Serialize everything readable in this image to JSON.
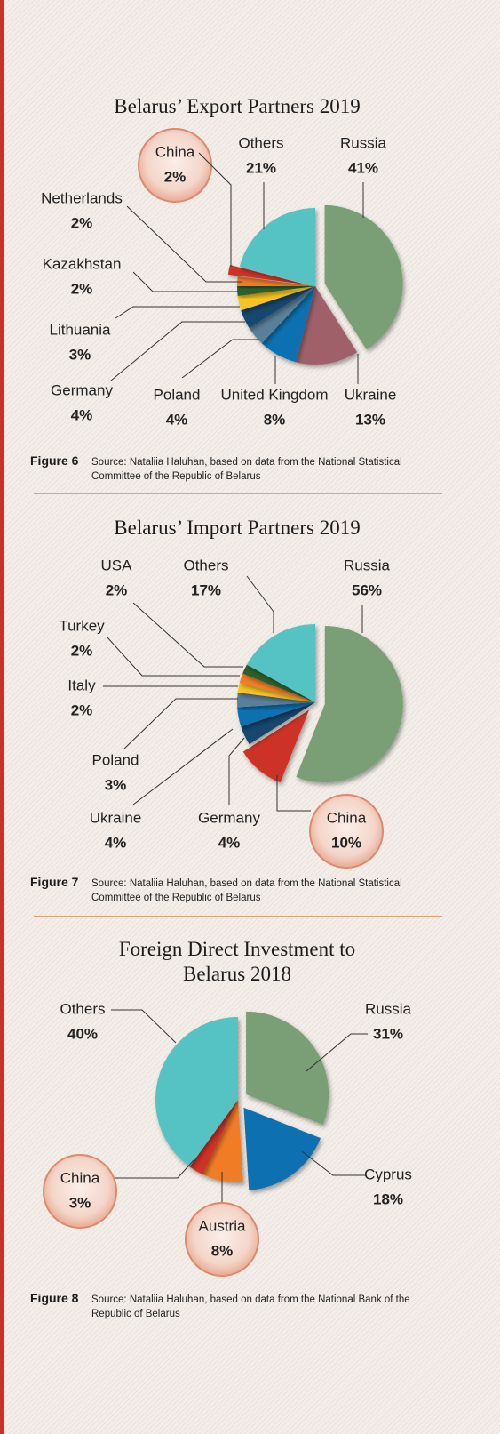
{
  "chart_data": [
    {
      "type": "pie",
      "title": "Belarus’ Export Partners 2019",
      "categories": [
        "Russia",
        "Ukraine",
        "United Kingdom",
        "Poland",
        "Germany",
        "Lithuania",
        "Kazakhstan",
        "Netherlands",
        "China",
        "Others"
      ],
      "values": [
        41,
        13,
        8,
        4,
        4,
        3,
        2,
        2,
        2,
        21
      ],
      "value_labels": [
        "41%",
        "13%",
        "8%",
        "4%",
        "4%",
        "3%",
        "2%",
        "2%",
        "2%",
        "21%"
      ],
      "colors": [
        "#7a9e74",
        "#a0606b",
        "#0e6fb0",
        "#5a7f99",
        "#12466e",
        "#f5c321",
        "#2f5f2a",
        "#f07b27",
        "#cc3127",
        "#55c2c3"
      ],
      "explode": [
        true,
        false,
        false,
        false,
        false,
        false,
        false,
        false,
        true,
        false
      ],
      "highlight": [
        false,
        false,
        false,
        false,
        false,
        false,
        false,
        false,
        true,
        false
      ],
      "figure_label": "Figure 6",
      "source": "Source: Nataliia Haluhan, based on data from the National Statistical Committee of the Republic of Belarus"
    },
    {
      "type": "pie",
      "title": "Belarus’ Import Partners 2019",
      "categories": [
        "Russia",
        "China",
        "Germany",
        "Ukraine",
        "Poland",
        "Italy",
        "Turkey",
        "USA",
        "Others"
      ],
      "values": [
        56,
        10,
        4,
        4,
        3,
        2,
        2,
        2,
        17
      ],
      "value_labels": [
        "56%",
        "10%",
        "4%",
        "4%",
        "3%",
        "2%",
        "2%",
        "2%",
        "17%"
      ],
      "colors": [
        "#7a9e74",
        "#cc3127",
        "#12466e",
        "#0e6fb0",
        "#5a7f99",
        "#f5c321",
        "#f07b27",
        "#2f5f2a",
        "#55c2c3"
      ],
      "explode": [
        true,
        true,
        false,
        false,
        false,
        false,
        false,
        false,
        false
      ],
      "highlight": [
        false,
        true,
        false,
        false,
        false,
        false,
        false,
        false,
        false
      ],
      "figure_label": "Figure 7",
      "source": "Source: Nataliia Haluhan, based on data from the National Statistical Committee of the Republic of Belarus"
    },
    {
      "type": "pie",
      "title": "Foreign Direct Investment to Belarus 2018",
      "categories": [
        "Russia",
        "Cyprus",
        "Austria",
        "China",
        "Others"
      ],
      "values": [
        31,
        18,
        8,
        3,
        40
      ],
      "value_labels": [
        "31%",
        "18%",
        "8%",
        "3%",
        "40%"
      ],
      "colors": [
        "#7a9e74",
        "#0e6fb0",
        "#f07b27",
        "#cc3127",
        "#55c2c3"
      ],
      "explode": [
        true,
        true,
        false,
        false,
        false
      ],
      "highlight": [
        false,
        false,
        true,
        true,
        false
      ],
      "figure_label": "Figure 8",
      "source": "Source: Nataliia Haluhan, based on data from the National Bank of the Republic of Belarus"
    }
  ]
}
